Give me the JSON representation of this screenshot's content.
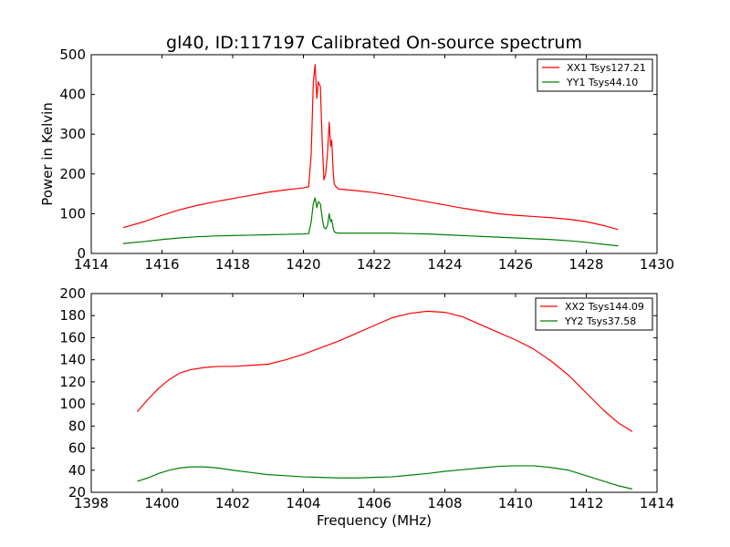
{
  "chart_data": [
    {
      "type": "line",
      "title": "gl40, ID:117197 Calibrated On-source spectrum",
      "xlabel": "",
      "ylabel": "Power in Kelvin",
      "xlim": [
        1414,
        1430
      ],
      "ylim": [
        0,
        500
      ],
      "xticks": [
        1414,
        1416,
        1418,
        1420,
        1422,
        1424,
        1426,
        1428,
        1430
      ],
      "yticks": [
        0,
        100,
        200,
        300,
        400,
        500
      ],
      "legend_position": "top-right",
      "series": [
        {
          "name": "XX1 Tsys127.21",
          "color": "#ff0000",
          "x": [
            1414.9,
            1415.5,
            1416.0,
            1416.5,
            1417.0,
            1417.5,
            1418.0,
            1418.5,
            1419.0,
            1419.5,
            1420.0,
            1420.15,
            1420.22,
            1420.28,
            1420.33,
            1420.38,
            1420.42,
            1420.48,
            1420.53,
            1420.58,
            1420.63,
            1420.68,
            1420.73,
            1420.77,
            1420.8,
            1420.84,
            1420.87,
            1420.92,
            1421.0,
            1421.5,
            1422.0,
            1422.5,
            1423.0,
            1423.5,
            1424.0,
            1424.5,
            1425.0,
            1425.5,
            1426.0,
            1426.5,
            1427.0,
            1427.5,
            1428.0,
            1428.5,
            1428.9
          ],
          "y": [
            65,
            80,
            96,
            110,
            121,
            130,
            138,
            146,
            154,
            160,
            165,
            168,
            250,
            430,
            475,
            390,
            432,
            420,
            285,
            185,
            200,
            250,
            330,
            270,
            285,
            210,
            175,
            168,
            162,
            158,
            153,
            146,
            138,
            130,
            122,
            114,
            107,
            100,
            96,
            93,
            90,
            86,
            80,
            70,
            60
          ]
        },
        {
          "name": "YY1 Tsys44.10",
          "color": "#008000",
          "x": [
            1414.9,
            1415.5,
            1416.0,
            1416.5,
            1417.0,
            1417.5,
            1418.0,
            1418.5,
            1419.0,
            1419.5,
            1420.0,
            1420.15,
            1420.22,
            1420.28,
            1420.33,
            1420.38,
            1420.42,
            1420.48,
            1420.53,
            1420.58,
            1420.63,
            1420.68,
            1420.73,
            1420.77,
            1420.8,
            1420.84,
            1420.87,
            1420.92,
            1421.0,
            1421.5,
            1422.0,
            1422.5,
            1423.0,
            1423.5,
            1424.0,
            1424.5,
            1425.0,
            1425.5,
            1426.0,
            1426.5,
            1427.0,
            1427.5,
            1428.0,
            1428.5,
            1428.9
          ],
          "y": [
            25,
            30,
            35,
            39,
            42,
            44,
            45,
            46,
            47,
            48,
            49,
            50,
            80,
            125,
            140,
            115,
            130,
            125,
            90,
            65,
            62,
            70,
            100,
            80,
            85,
            65,
            55,
            52,
            51,
            51,
            51,
            51,
            50,
            49,
            47,
            45,
            43,
            41,
            39,
            37,
            35,
            32,
            28,
            23,
            19
          ]
        }
      ]
    },
    {
      "type": "line",
      "title": "",
      "xlabel": "Frequency (MHz)",
      "ylabel": "",
      "xlim": [
        1398,
        1414
      ],
      "ylim": [
        20,
        200
      ],
      "xticks": [
        1398,
        1400,
        1402,
        1404,
        1406,
        1408,
        1410,
        1412,
        1414
      ],
      "yticks": [
        20,
        40,
        60,
        80,
        100,
        120,
        140,
        160,
        180,
        200
      ],
      "legend_position": "top-right",
      "series": [
        {
          "name": "XX2 Tsys144.09",
          "color": "#ff0000",
          "x": [
            1399.3,
            1399.6,
            1399.9,
            1400.2,
            1400.5,
            1400.8,
            1401.2,
            1401.6,
            1402.0,
            1402.5,
            1403.0,
            1403.5,
            1404.0,
            1404.5,
            1405.0,
            1405.5,
            1406.0,
            1406.5,
            1407.0,
            1407.5,
            1408.0,
            1408.5,
            1409.0,
            1409.5,
            1410.0,
            1410.5,
            1411.0,
            1411.5,
            1412.0,
            1412.5,
            1412.9,
            1413.3
          ],
          "y": [
            93,
            104,
            114,
            122,
            128,
            131,
            133,
            134,
            134,
            135,
            136,
            140,
            145,
            151,
            157,
            164,
            171,
            178,
            182,
            184,
            183,
            179,
            172,
            165,
            158,
            150,
            139,
            126,
            110,
            94,
            83,
            75
          ]
        },
        {
          "name": "YY2 Tsys37.58",
          "color": "#008000",
          "x": [
            1399.3,
            1399.6,
            1399.9,
            1400.2,
            1400.5,
            1400.8,
            1401.2,
            1401.6,
            1402.0,
            1402.5,
            1403.0,
            1403.5,
            1404.0,
            1404.5,
            1405.0,
            1405.5,
            1406.0,
            1406.5,
            1407.0,
            1407.5,
            1408.0,
            1408.5,
            1409.0,
            1409.5,
            1410.0,
            1410.5,
            1411.0,
            1411.5,
            1412.0,
            1412.5,
            1412.9,
            1413.3
          ],
          "y": [
            30,
            33,
            37,
            40,
            42,
            43,
            43,
            42,
            40,
            38,
            36,
            35,
            34,
            33.5,
            33,
            33,
            33.5,
            34,
            35.5,
            37,
            39,
            40.5,
            42,
            43.5,
            44,
            44,
            42.5,
            40,
            35,
            30,
            26,
            23
          ]
        }
      ]
    }
  ]
}
